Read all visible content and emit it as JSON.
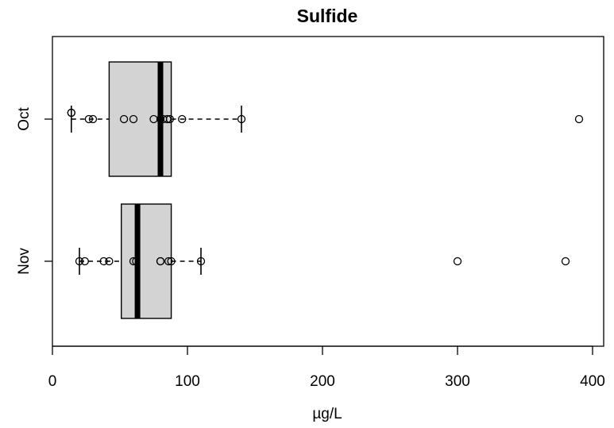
{
  "chart_data": {
    "type": "boxplot",
    "orientation": "horizontal",
    "title": "Sulfide",
    "xlabel": "µg/L",
    "ylabel": "",
    "xlim": [
      0,
      400
    ],
    "xticks": [
      0,
      100,
      200,
      300,
      400
    ],
    "grid": false,
    "categories": [
      "Oct",
      "Nov"
    ],
    "boxes": [
      {
        "category": "Oct",
        "whisker_low": 14,
        "q1": 42,
        "median": 80,
        "q3": 88,
        "whisker_high": 140,
        "points": [
          14,
          14,
          27,
          30,
          53,
          60,
          75,
          80,
          82,
          85,
          87,
          96,
          140,
          390
        ]
      },
      {
        "category": "Nov",
        "whisker_low": 20,
        "q1": 51,
        "median": 63,
        "q3": 88,
        "whisker_high": 110,
        "points": [
          20,
          24,
          38,
          42,
          60,
          62,
          80,
          80,
          86,
          88,
          110,
          300,
          380
        ]
      }
    ],
    "colors": {
      "box_fill": "#d3d3d3",
      "line": "#000000",
      "background": "#ffffff"
    }
  }
}
